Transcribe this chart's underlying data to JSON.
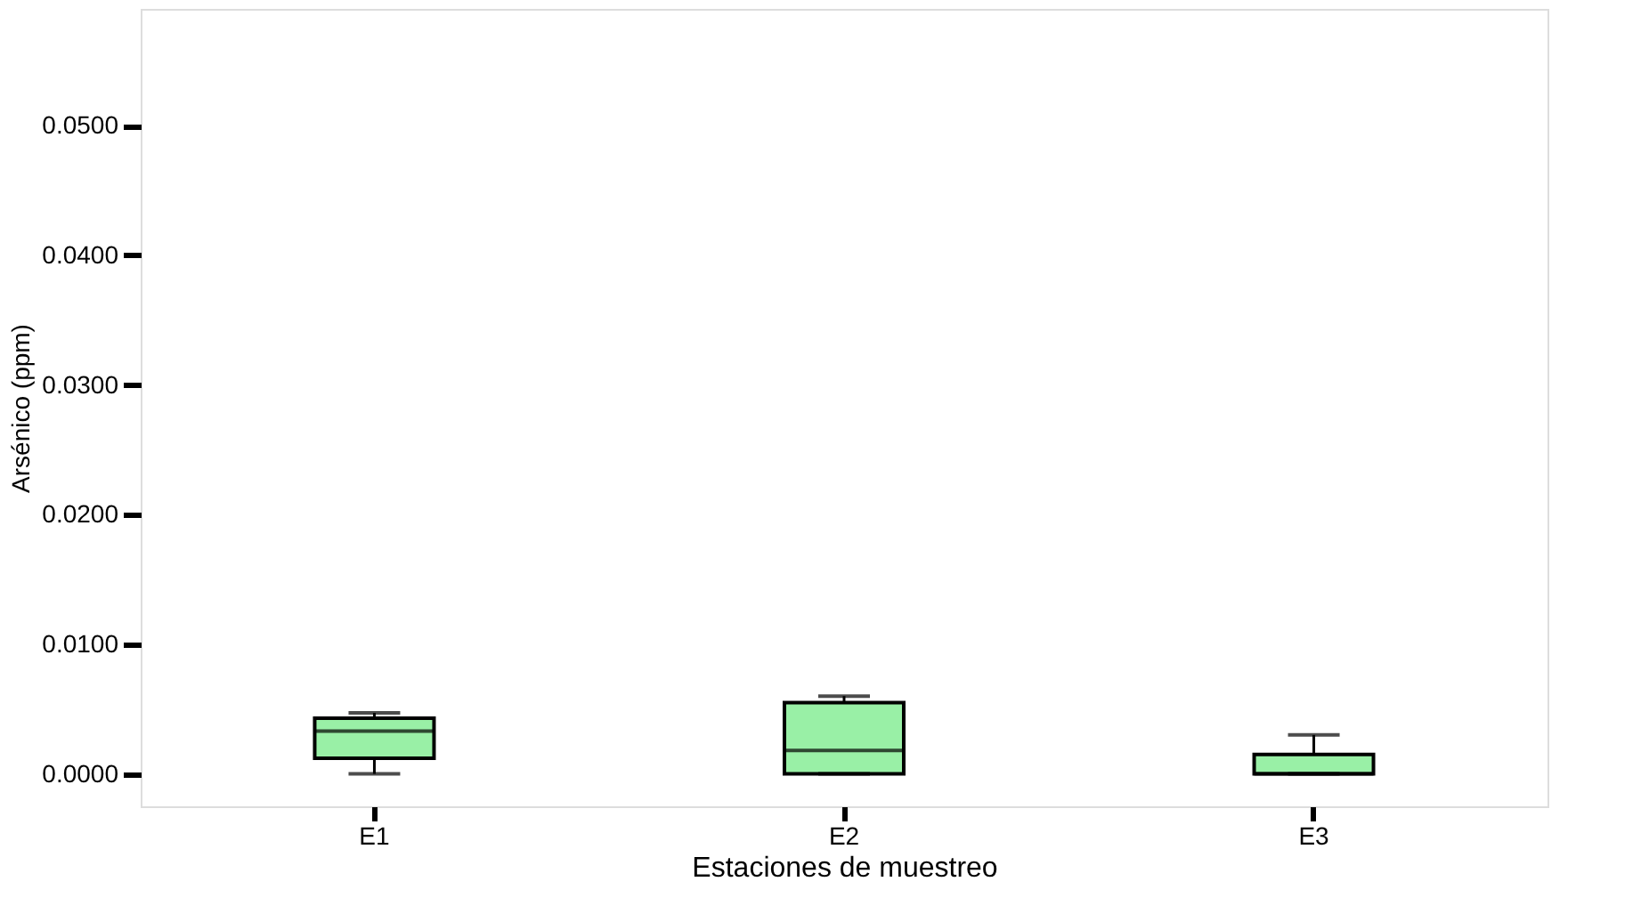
{
  "chart_data": {
    "type": "box",
    "xlabel": "Estaciones de muestreo",
    "ylabel": "Arsénico (ppm)",
    "categories": [
      "E1",
      "E2",
      "E3"
    ],
    "boxes": [
      {
        "low": 0.0,
        "q1": 0.0012,
        "median": 0.0033,
        "q3": 0.0043,
        "high": 0.0047
      },
      {
        "low": 0.0,
        "q1": 0.0,
        "median": 0.0018,
        "q3": 0.0055,
        "high": 0.006
      },
      {
        "low": 0.0,
        "q1": 0.0,
        "median": 0.0,
        "q3": 0.0015,
        "high": 0.003
      }
    ],
    "color": "#99f0a6",
    "ylim": [
      -0.0025,
      0.059
    ],
    "yticks": [
      {
        "value": 0,
        "label": "0.0000"
      },
      {
        "value": 0.01,
        "label": "0.0100"
      },
      {
        "value": 0.02,
        "label": "0.0200"
      },
      {
        "value": 0.03,
        "label": "0.0300"
      },
      {
        "value": 0.04,
        "label": "0.0400"
      },
      {
        "value": 0.05,
        "label": "0.0500"
      }
    ],
    "grid": false
  }
}
